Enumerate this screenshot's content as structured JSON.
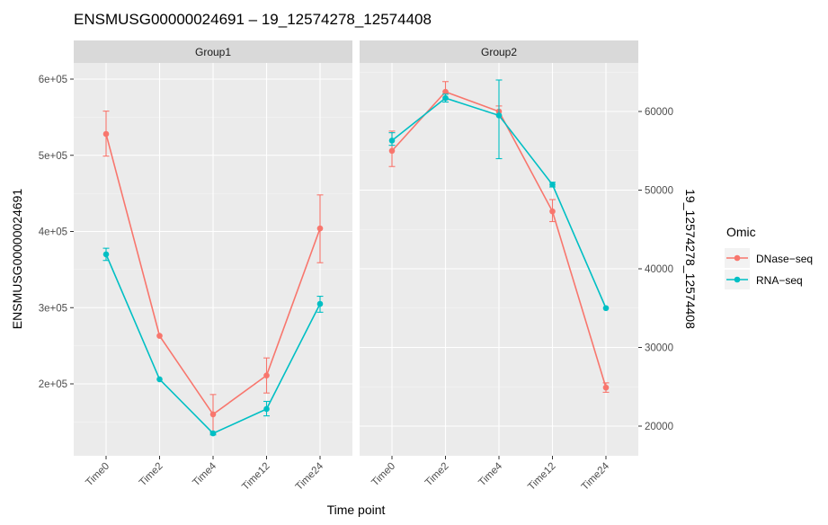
{
  "chart_data": {
    "type": "line",
    "title": "ENSMUSG00000024691 – 19_12574278_12574408",
    "xlabel": "Time point",
    "ylabel_left": "ENSMUSG00000024691",
    "ylabel_right": "19_12574278_12574408",
    "categories": [
      "Time0",
      "Time2",
      "Time4",
      "Time12",
      "Time24"
    ],
    "left_axis": {
      "ticks": [
        200000,
        300000,
        400000,
        500000,
        600000
      ],
      "tick_labels": [
        "2e+05",
        "3e+05",
        "4e+05",
        "5e+05",
        "6e+05"
      ]
    },
    "right_axis": {
      "ticks": [
        20000,
        30000,
        40000,
        50000,
        60000
      ],
      "tick_labels": [
        "20000",
        "30000",
        "40000",
        "50000",
        "60000"
      ]
    },
    "legend": {
      "title": "Omic",
      "position": "right",
      "entries": [
        {
          "name": "DNase−seq",
          "color": "#F8766D"
        },
        {
          "name": "RNA−seq",
          "color": "#00BFC4"
        }
      ]
    },
    "panels": [
      {
        "strip": "Group1",
        "series": [
          {
            "name": "DNase−seq",
            "color": "#F8766D",
            "values": [
              528000,
              263000,
              160000,
              211000,
              404000
            ],
            "err_low": [
              499000,
              263000,
              135000,
              188000,
              359000
            ],
            "err_high": [
              558000,
              263000,
              186000,
              234000,
              448000
            ]
          },
          {
            "name": "RNA−seq",
            "color": "#00BFC4",
            "values": [
              370000,
              206000,
              135000,
              167000,
              305000
            ],
            "err_low": [
              362000,
              206000,
              133000,
              158000,
              294000
            ],
            "err_high": [
              378000,
              206000,
              137000,
              177000,
              315000
            ]
          }
        ]
      },
      {
        "strip": "Group2",
        "series": [
          {
            "name": "DNase−seq",
            "color": "#F8766D",
            "values": [
              55000,
              62500,
              60000,
              47300,
              24900
            ],
            "err_low": [
              53000,
              61500,
              59500,
              46000,
              24300
            ],
            "err_high": [
              57500,
              63800,
              60700,
              48800,
              25500
            ]
          },
          {
            "name": "RNA−seq",
            "color": "#00BFC4",
            "values": [
              56300,
              61700,
              59500,
              50700,
              35000
            ],
            "err_low": [
              55700,
              61200,
              54000,
              50400,
              35000
            ],
            "err_high": [
              57300,
              62200,
              64000,
              51000,
              35000
            ]
          }
        ]
      }
    ],
    "grid": true
  }
}
